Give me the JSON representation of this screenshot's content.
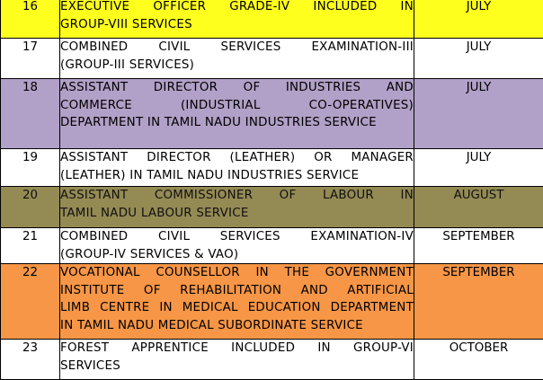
{
  "rows": [
    {
      "no": "16",
      "title_lines": [
        "EXECUTIVE OFFICER GRADE-IV INCLUDED IN",
        "GROUP-VIII SERVICES"
      ],
      "month": "JULY",
      "bg": "#ffff1e"
    },
    {
      "no": "17",
      "title_lines": [
        "COMBINED CIVIL SERVICES EXAMINATION-III",
        "(GROUP-III SERVICES)"
      ],
      "month": "JULY",
      "bg": "#ffffff"
    },
    {
      "no": "18",
      "title_lines": [
        "ASSISTANT DIRECTOR OF INDUSTRIES AND",
        "COMMERCE (INDUSTRIAL CO-OPERATIVES)",
        "DEPARTMENT IN TAMIL NADU INDUSTRIES SERVICE"
      ],
      "month": "JULY",
      "bg": "#b1a0c7"
    },
    {
      "no": "19",
      "title_lines": [
        "ASSISTANT DIRECTOR (LEATHER) OR MANAGER",
        "(LEATHER) IN TAMIL NADU INDUSTRIES SERVICE"
      ],
      "month": "JULY",
      "bg": "#ffffff"
    },
    {
      "no": "20",
      "title_lines": [
        "ASSISTANT COMMISSIONER OF LABOUR IN",
        "TAMIL NADU LABOUR SERVICE"
      ],
      "month": "AUGUST",
      "bg": "#948a54"
    },
    {
      "no": "21",
      "title_lines": [
        "COMBINED CIVIL SERVICES EXAMINATION-IV",
        "(GROUP-IV SERVICES & VAO)"
      ],
      "month": "SEPTEMBER",
      "bg": "#ffffff"
    },
    {
      "no": "22",
      "title_lines": [
        "VOCATIONAL COUNSELLOR IN THE GOVERNMENT",
        "INSTITUTE OF REHABILITATION AND ARTIFICIAL",
        "LIMB CENTRE IN MEDICAL EDUCATION DEPARTMENT",
        "IN TAMIL NADU MEDICAL SUBORDINATE SERVICE"
      ],
      "month": "SEPTEMBER",
      "bg": "#f79646"
    },
    {
      "no": "23",
      "title_lines": [
        "FOREST APPRENTICE INCLUDED IN GROUP-VI",
        "SERVICES"
      ],
      "month": "OCTOBER",
      "bg": "#ffffff"
    }
  ]
}
